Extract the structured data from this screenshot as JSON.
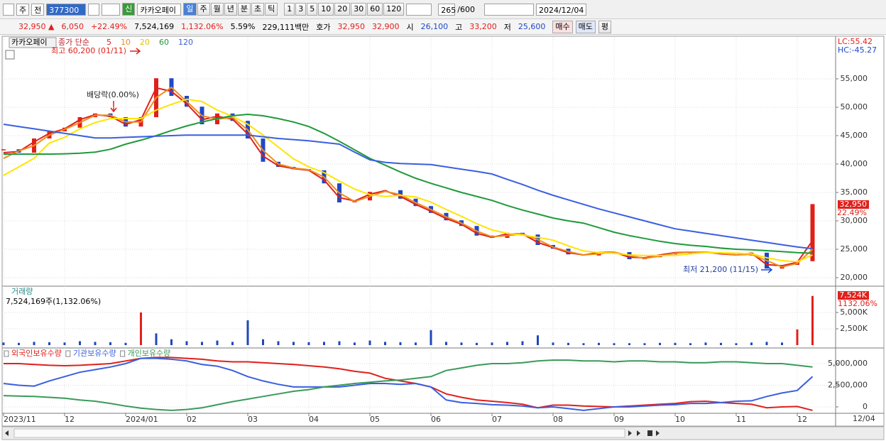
{
  "toolbar": {
    "market": "주",
    "prev": "전",
    "code": "377300",
    "new_badge": "신",
    "name": "카카오페이",
    "periods": [
      "일",
      "주",
      "월",
      "년",
      "분",
      "초",
      "틱"
    ],
    "intervals": [
      "1",
      "3",
      "5",
      "10",
      "20",
      "30",
      "60",
      "120"
    ],
    "count": "265",
    "max_count": "/600",
    "date": "2024/12/04"
  },
  "quote": {
    "price": "32,950",
    "arrow": "▲",
    "change": "6,050",
    "change_pct": "+22.49%",
    "volume": "7,524,169",
    "volume_pct": "1,132.06%",
    "turnover": "5.59%",
    "amount": "229,111백만",
    "bid_ask_label": "호가",
    "ask": "32,950",
    "bid": "32,900",
    "open_label": "시",
    "open": "26,100",
    "high_label": "고",
    "high": "33,200",
    "low_label": "저",
    "low": "25,600",
    "buy": "매수",
    "sell": "매도",
    "avg": "평"
  },
  "chart_data": [
    {
      "type": "line",
      "title": "카카오페이",
      "legend_prefix": "종가 단순",
      "annotations": [
        "최고 60,200 (01/11)",
        "배당락(0.00%)",
        "최저 21,200 (11/15)"
      ],
      "lc_label": "LC:55.42",
      "hc_label": "HC:-45.27",
      "last_label": "32,950",
      "last_pct": "22.49%",
      "close": [
        42600,
        42000,
        44500,
        45750,
        46400,
        48250,
        48900,
        48250,
        46600,
        48250,
        55100,
        52000,
        50100,
        47000,
        48900,
        47600,
        44500,
        40400,
        39500,
        39100,
        38900,
        36600,
        33250,
        33600,
        35100,
        35400,
        33900,
        32600,
        31400,
        30100,
        29100,
        27400,
        27000,
        27900,
        27600,
        25750,
        25100,
        24100,
        23900,
        24500,
        24500,
        23250,
        23600,
        24100,
        24500,
        24500,
        24500,
        24100,
        23900,
        24400,
        21600,
        22250,
        22900,
        32950
      ],
      "series": [
        {
          "name": "5",
          "color": "#e0201b",
          "values": [
            42000,
            42200,
            43900,
            45400,
            46200,
            47800,
            48700,
            48400,
            47000,
            47800,
            53400,
            52800,
            50600,
            47800,
            48400,
            47900,
            45300,
            41400,
            39700,
            39200,
            38900,
            37200,
            34100,
            33500,
            34700,
            35300,
            34300,
            32900,
            31700,
            30400,
            29400,
            27800,
            27100,
            27700,
            27700,
            26200,
            25300,
            24400,
            24000,
            24400,
            24500,
            23600,
            23500,
            24000,
            24400,
            24500,
            24500,
            24200,
            24000,
            24300,
            22300,
            22100,
            22700,
            26500
          ]
        },
        {
          "name": "10",
          "color": "#f08c1e",
          "values": [
            41000,
            42300,
            43250,
            45100,
            46100,
            47300,
            48600,
            48600,
            47400,
            47400,
            51700,
            53500,
            51000,
            48500,
            47900,
            48200,
            46000,
            42400,
            40000,
            39300,
            39000,
            37700,
            34900,
            33400,
            34300,
            35200,
            34600,
            33200,
            32000,
            30700,
            29600,
            28200,
            27200,
            27400,
            27700,
            26700,
            25400,
            24600,
            24000,
            24200,
            24500,
            23900,
            23400,
            23800,
            24300,
            24500,
            24500,
            24300,
            24000,
            24100,
            23000,
            21900,
            22500,
            25000
          ]
        },
        {
          "name": "20",
          "color": "#ffe400",
          "values": [
            38000,
            39500,
            41000,
            43700,
            44700,
            46200,
            47300,
            48000,
            48000,
            48000,
            49500,
            50500,
            51400,
            51000,
            49500,
            48400,
            47000,
            45100,
            43000,
            40900,
            39500,
            38500,
            37000,
            35600,
            34600,
            34300,
            34500,
            34200,
            33300,
            32000,
            30800,
            29500,
            28400,
            27800,
            27500,
            27100,
            26600,
            25600,
            24700,
            24400,
            24300,
            24000,
            23900,
            23900,
            23900,
            24200,
            24400,
            24400,
            24300,
            24200,
            23500,
            23000,
            22800,
            24000
          ]
        },
        {
          "name": "60",
          "color": "#1f9a3a",
          "values": [
            41750,
            41750,
            41750,
            41750,
            41800,
            41900,
            42100,
            42600,
            43500,
            44200,
            45000,
            45900,
            46700,
            47400,
            48000,
            48500,
            48750,
            48500,
            48000,
            47400,
            46600,
            45400,
            44000,
            42500,
            41000,
            39800,
            38600,
            37500,
            36600,
            35800,
            35000,
            34300,
            33600,
            32700,
            31900,
            31200,
            30500,
            30000,
            29600,
            28800,
            28000,
            27400,
            26900,
            26400,
            26000,
            25700,
            25500,
            25200,
            25000,
            24900,
            24750,
            24600,
            24400,
            24300
          ]
        },
        {
          "name": "120",
          "color": "#3a5fe0",
          "values": [
            47000,
            46600,
            46200,
            45800,
            45400,
            45000,
            44600,
            44600,
            44700,
            44800,
            44900,
            45000,
            45100,
            45100,
            45100,
            45100,
            45100,
            44800,
            44500,
            44300,
            44100,
            43800,
            43500,
            42100,
            40750,
            40300,
            40100,
            40000,
            39900,
            39500,
            39100,
            38700,
            38250,
            37300,
            36400,
            35400,
            34500,
            33700,
            32900,
            32100,
            31400,
            30700,
            30000,
            29300,
            28600,
            28200,
            27800,
            27400,
            27000,
            26600,
            26200,
            25800,
            25400,
            25100
          ]
        }
      ],
      "ylim": [
        18875,
        62375
      ],
      "yticks": [
        {
          "value": 20000,
          "label": "20,000"
        },
        {
          "value": 25000,
          "label": "25,000"
        },
        {
          "value": 30000,
          "label": "30,000"
        },
        {
          "value": 35000,
          "label": "35,000"
        },
        {
          "value": 40000,
          "label": "40,000"
        },
        {
          "value": 45000,
          "label": "45,000"
        },
        {
          "value": 50000,
          "label": "50,000"
        },
        {
          "value": 55000,
          "label": "55,000"
        }
      ],
      "grid": true
    },
    {
      "type": "bar",
      "title": "거래량",
      "subtitle": "7,524,169주(1,132.06%)",
      "last_label": "7,524K",
      "last_pct": "1132.06%",
      "color": "#2047b8",
      "up_color": "#e0201b",
      "values": [
        400000,
        350000,
        500000,
        450000,
        400000,
        600000,
        500000,
        450000,
        350000,
        5000000,
        1800000,
        900000,
        600000,
        500000,
        700000,
        500000,
        3800000,
        900000,
        600000,
        500000,
        450000,
        500000,
        600000,
        400000,
        700000,
        500000,
        450000,
        400000,
        2300000,
        500000,
        400000,
        350000,
        400000,
        500000,
        600000,
        1500000,
        400000,
        350000,
        300000,
        350000,
        300000,
        300000,
        300000,
        350000,
        350000,
        300000,
        400000,
        350000,
        300000,
        400000,
        500000,
        400000,
        2400000,
        7524169
      ],
      "ylim": [
        0,
        8260000
      ],
      "yticks": [
        {
          "value": 2500000,
          "label": "2,500K"
        },
        {
          "value": 5000000,
          "label": "5,000K"
        }
      ],
      "grid": true
    },
    {
      "type": "line",
      "x_end_label": "12/04",
      "categories": [
        "2023/11",
        null,
        null,
        null,
        "12",
        null,
        null,
        null,
        "2024/01",
        null,
        null,
        null,
        "02",
        null,
        null,
        null,
        "03",
        null,
        null,
        null,
        "04",
        null,
        null,
        null,
        "05",
        null,
        null,
        null,
        "06",
        null,
        null,
        null,
        "07",
        null,
        null,
        null,
        "08",
        null,
        null,
        null,
        "09",
        null,
        null,
        null,
        "10",
        null,
        null,
        null,
        "11",
        null,
        null,
        null,
        "12",
        null
      ],
      "series": [
        {
          "name": "외국인보유수량",
          "color": "#e0201b",
          "values": [
            5000000,
            5000000,
            4900000,
            4800000,
            4750000,
            4800000,
            4900000,
            5000000,
            5300000,
            5600000,
            5700000,
            5700000,
            5600000,
            5500000,
            5300000,
            5200000,
            5200000,
            5100000,
            5000000,
            4900000,
            4750000,
            4600000,
            4400000,
            4100000,
            3900000,
            3300000,
            3000000,
            2700000,
            2300000,
            1500000,
            1100000,
            800000,
            650000,
            500000,
            300000,
            -100000,
            200000,
            200000,
            100000,
            50000,
            0,
            100000,
            200000,
            300000,
            400000,
            600000,
            650000,
            500000,
            400000,
            300000,
            -100000,
            0,
            50000,
            -400000
          ]
        },
        {
          "name": "기관보유수량",
          "color": "#3a5fe0",
          "values": [
            2700000,
            2500000,
            2400000,
            3000000,
            3500000,
            4000000,
            4300000,
            4600000,
            5000000,
            5600000,
            5600000,
            5500000,
            5300000,
            4900000,
            4700000,
            4200000,
            3500000,
            3000000,
            2600000,
            2300000,
            2300000,
            2300000,
            2300000,
            2500000,
            2700000,
            2700000,
            2600000,
            2700000,
            2300000,
            800000,
            500000,
            400000,
            250000,
            200000,
            100000,
            -100000,
            0,
            -200000,
            -400000,
            -200000,
            0,
            0,
            100000,
            200000,
            250000,
            400000,
            400000,
            500000,
            650000,
            700000,
            1200000,
            1600000,
            1900000,
            3500000
          ]
        },
        {
          "name": "개인보유수량",
          "color": "#3a9a5a",
          "values": [
            1300000,
            1250000,
            1200000,
            1100000,
            1000000,
            800000,
            650000,
            400000,
            100000,
            -150000,
            -300000,
            -400000,
            -300000,
            -100000,
            250000,
            600000,
            900000,
            1200000,
            1500000,
            1800000,
            2000000,
            2300000,
            2500000,
            2700000,
            2850000,
            3000000,
            3100000,
            3300000,
            3500000,
            4200000,
            4500000,
            4800000,
            5000000,
            5000000,
            5100000,
            5300000,
            5400000,
            5400000,
            5300000,
            5300000,
            5200000,
            5300000,
            5300000,
            5200000,
            5200000,
            5100000,
            5100000,
            5200000,
            5200000,
            5100000,
            5000000,
            5000000,
            4800000,
            4600000
          ]
        }
      ],
      "ylim": [
        -740000,
        5980000
      ],
      "yticks": [
        0,
        {
          "value": 2500000,
          "label": "2,500,000"
        },
        {
          "value": 5000000,
          "label": "5,000,000"
        }
      ],
      "grid": true
    }
  ]
}
